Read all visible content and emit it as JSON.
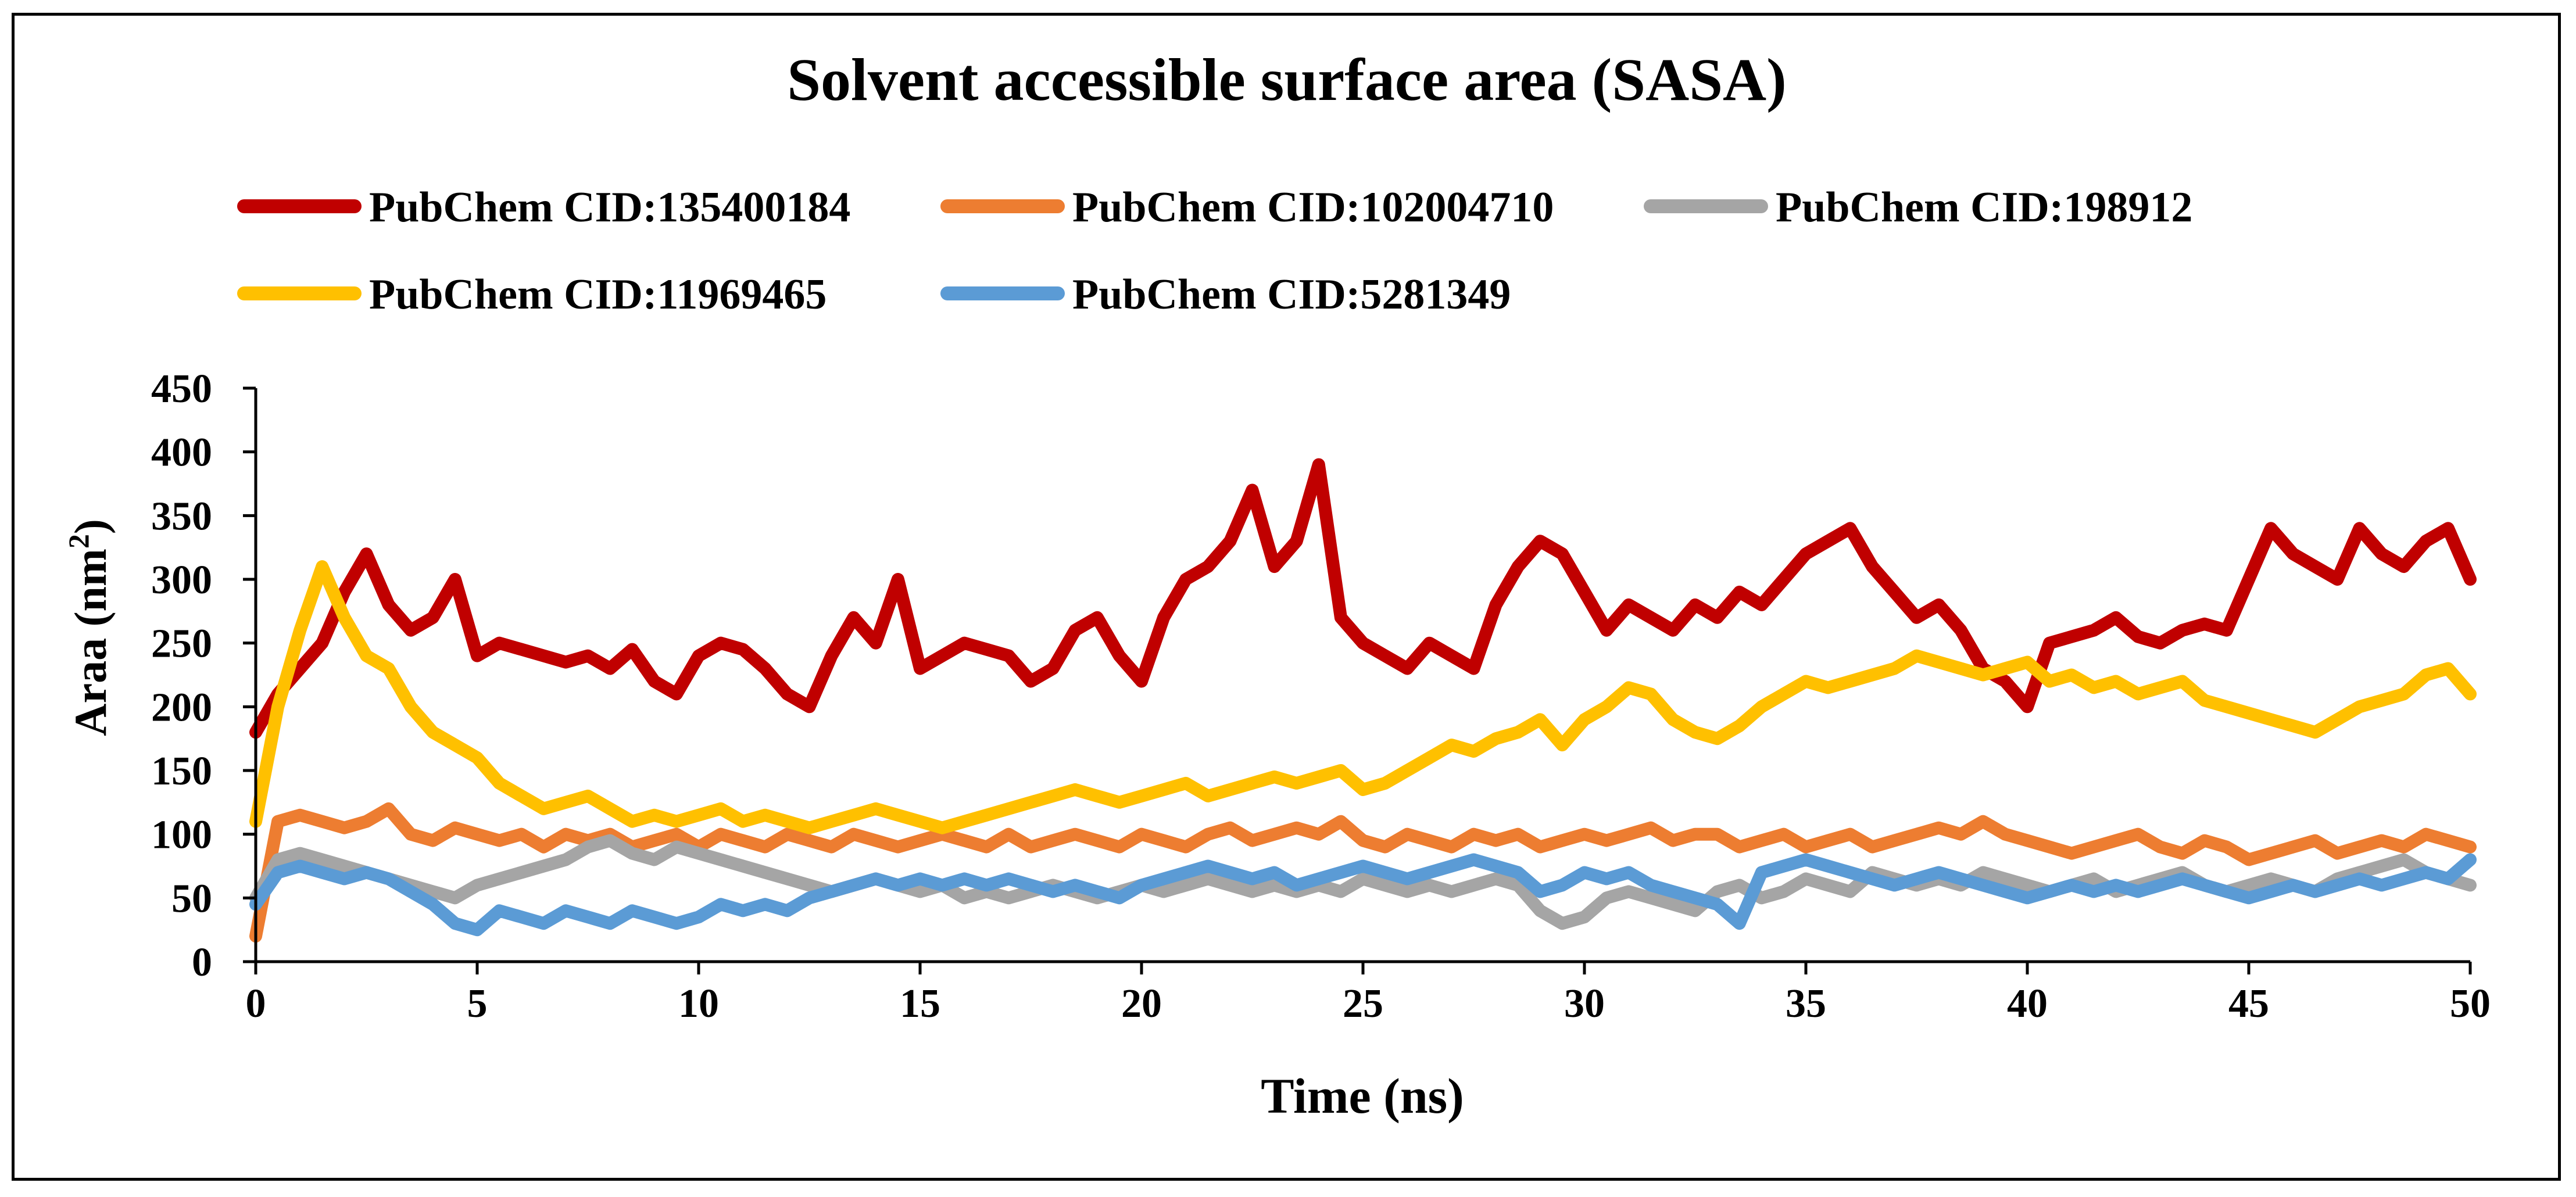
{
  "chart_data": {
    "type": "line",
    "title": "Solvent accessible surface area (SASA)",
    "xlabel": "Time (ns)",
    "ylabel": "Araa (nm",
    "ylabel_sup": "2",
    "ylabel_tail": ")",
    "xlim": [
      0,
      50
    ],
    "ylim": [
      0,
      450
    ],
    "xticks": [
      0,
      5,
      10,
      15,
      20,
      25,
      30,
      35,
      40,
      45,
      50
    ],
    "yticks": [
      0,
      50,
      100,
      150,
      200,
      250,
      300,
      350,
      400,
      450
    ],
    "legend_position": "top",
    "series": [
      {
        "name": "PubChem CID:135400184",
        "color": "#C00000",
        "x": [
          0,
          0.5,
          1,
          1.5,
          2,
          2.5,
          3,
          3.5,
          4,
          4.5,
          5,
          5.5,
          6,
          6.5,
          7,
          7.5,
          8,
          8.5,
          9,
          9.5,
          10,
          10.5,
          11,
          11.5,
          12,
          12.5,
          13,
          13.5,
          14,
          14.5,
          15,
          15.5,
          16,
          16.5,
          17,
          17.5,
          18,
          18.5,
          19,
          19.5,
          20,
          20.5,
          21,
          21.5,
          22,
          22.5,
          23,
          23.5,
          24,
          24.5,
          25,
          25.5,
          26,
          26.5,
          27,
          27.5,
          28,
          28.5,
          29,
          29.5,
          30,
          30.5,
          31,
          31.5,
          32,
          32.5,
          33,
          33.5,
          34,
          34.5,
          35,
          35.5,
          36,
          36.5,
          37,
          37.5,
          38,
          38.5,
          39,
          39.5,
          40,
          40.5,
          41,
          41.5,
          42,
          42.5,
          43,
          43.5,
          44,
          44.5,
          45,
          45.5,
          46,
          46.5,
          47,
          47.5,
          48,
          48.5,
          49,
          49.5,
          50
        ],
        "values": [
          180,
          210,
          230,
          250,
          290,
          320,
          280,
          260,
          270,
          300,
          240,
          250,
          245,
          240,
          235,
          240,
          230,
          245,
          220,
          210,
          240,
          250,
          245,
          230,
          210,
          200,
          240,
          270,
          250,
          300,
          230,
          240,
          250,
          245,
          240,
          220,
          230,
          260,
          270,
          240,
          220,
          270,
          300,
          310,
          330,
          370,
          310,
          330,
          390,
          270,
          250,
          240,
          230,
          250,
          240,
          230,
          280,
          310,
          330,
          320,
          290,
          260,
          280,
          270,
          260,
          280,
          270,
          290,
          280,
          300,
          320,
          330,
          340,
          310,
          290,
          270,
          280,
          260,
          230,
          220,
          200,
          250,
          255,
          260,
          270,
          255,
          250,
          260,
          265,
          260,
          300,
          340,
          320,
          310,
          300,
          340,
          320,
          310,
          330,
          340,
          300
        ]
      },
      {
        "name": "PubChem CID:102004710",
        "color": "#ED7D31",
        "x": [
          0,
          0.5,
          1,
          1.5,
          2,
          2.5,
          3,
          3.5,
          4,
          4.5,
          5,
          5.5,
          6,
          6.5,
          7,
          7.5,
          8,
          8.5,
          9,
          9.5,
          10,
          10.5,
          11,
          11.5,
          12,
          12.5,
          13,
          13.5,
          14,
          14.5,
          15,
          15.5,
          16,
          16.5,
          17,
          17.5,
          18,
          18.5,
          19,
          19.5,
          20,
          20.5,
          21,
          21.5,
          22,
          22.5,
          23,
          23.5,
          24,
          24.5,
          25,
          25.5,
          26,
          26.5,
          27,
          27.5,
          28,
          28.5,
          29,
          29.5,
          30,
          30.5,
          31,
          31.5,
          32,
          32.5,
          33,
          33.5,
          34,
          34.5,
          35,
          35.5,
          36,
          36.5,
          37,
          37.5,
          38,
          38.5,
          39,
          39.5,
          40,
          40.5,
          41,
          41.5,
          42,
          42.5,
          43,
          43.5,
          44,
          44.5,
          45,
          45.5,
          46,
          46.5,
          47,
          47.5,
          48,
          48.5,
          49,
          49.5,
          50
        ],
        "values": [
          20,
          110,
          115,
          110,
          105,
          110,
          120,
          100,
          95,
          105,
          100,
          95,
          100,
          90,
          100,
          95,
          100,
          90,
          95,
          100,
          90,
          100,
          95,
          90,
          100,
          95,
          90,
          100,
          95,
          90,
          95,
          100,
          95,
          90,
          100,
          90,
          95,
          100,
          95,
          90,
          100,
          95,
          90,
          100,
          105,
          95,
          100,
          105,
          100,
          110,
          95,
          90,
          100,
          95,
          90,
          100,
          95,
          100,
          90,
          95,
          100,
          95,
          100,
          105,
          95,
          100,
          100,
          90,
          95,
          100,
          90,
          95,
          100,
          90,
          95,
          100,
          105,
          100,
          110,
          100,
          95,
          90,
          85,
          90,
          95,
          100,
          90,
          85,
          95,
          90,
          80,
          85,
          90,
          95,
          85,
          90,
          95,
          90,
          100,
          95,
          90
        ]
      },
      {
        "name": "PubChem CID:198912",
        "color": "#A5A5A5",
        "x": [
          0,
          0.5,
          1,
          1.5,
          2,
          2.5,
          3,
          3.5,
          4,
          4.5,
          5,
          5.5,
          6,
          6.5,
          7,
          7.5,
          8,
          8.5,
          9,
          9.5,
          10,
          10.5,
          11,
          11.5,
          12,
          12.5,
          13,
          13.5,
          14,
          14.5,
          15,
          15.5,
          16,
          16.5,
          17,
          17.5,
          18,
          18.5,
          19,
          19.5,
          20,
          20.5,
          21,
          21.5,
          22,
          22.5,
          23,
          23.5,
          24,
          24.5,
          25,
          25.5,
          26,
          26.5,
          27,
          27.5,
          28,
          28.5,
          29,
          29.5,
          30,
          30.5,
          31,
          31.5,
          32,
          32.5,
          33,
          33.5,
          34,
          34.5,
          35,
          35.5,
          36,
          36.5,
          37,
          37.5,
          38,
          38.5,
          39,
          39.5,
          40,
          40.5,
          41,
          41.5,
          42,
          42.5,
          43,
          43.5,
          44,
          44.5,
          45,
          45.5,
          46,
          46.5,
          47,
          47.5,
          48,
          48.5,
          49,
          49.5,
          50
        ],
        "values": [
          50,
          80,
          85,
          80,
          75,
          70,
          65,
          60,
          55,
          50,
          60,
          65,
          70,
          75,
          80,
          90,
          95,
          85,
          80,
          90,
          85,
          80,
          75,
          70,
          65,
          60,
          55,
          60,
          65,
          60,
          55,
          60,
          50,
          55,
          50,
          55,
          60,
          55,
          50,
          55,
          60,
          55,
          60,
          65,
          60,
          55,
          60,
          55,
          60,
          55,
          65,
          60,
          55,
          60,
          55,
          60,
          65,
          60,
          40,
          30,
          35,
          50,
          55,
          50,
          45,
          40,
          55,
          60,
          50,
          55,
          65,
          60,
          55,
          70,
          65,
          60,
          65,
          60,
          70,
          65,
          60,
          55,
          60,
          65,
          55,
          60,
          65,
          70,
          60,
          55,
          60,
          65,
          60,
          55,
          65,
          70,
          75,
          80,
          70,
          65,
          60
        ]
      },
      {
        "name": "PubChem CID:11969465",
        "color": "#FFC000",
        "x": [
          0,
          0.5,
          1,
          1.5,
          2,
          2.5,
          3,
          3.5,
          4,
          4.5,
          5,
          5.5,
          6,
          6.5,
          7,
          7.5,
          8,
          8.5,
          9,
          9.5,
          10,
          10.5,
          11,
          11.5,
          12,
          12.5,
          13,
          13.5,
          14,
          14.5,
          15,
          15.5,
          16,
          16.5,
          17,
          17.5,
          18,
          18.5,
          19,
          19.5,
          20,
          20.5,
          21,
          21.5,
          22,
          22.5,
          23,
          23.5,
          24,
          24.5,
          25,
          25.5,
          26,
          26.5,
          27,
          27.5,
          28,
          28.5,
          29,
          29.5,
          30,
          30.5,
          31,
          31.5,
          32,
          32.5,
          33,
          33.5,
          34,
          34.5,
          35,
          35.5,
          36,
          36.5,
          37,
          37.5,
          38,
          38.5,
          39,
          39.5,
          40,
          40.5,
          41,
          41.5,
          42,
          42.5,
          43,
          43.5,
          44,
          44.5,
          45,
          45.5,
          46,
          46.5,
          47,
          47.5,
          48,
          48.5,
          49,
          49.5,
          50
        ],
        "values": [
          110,
          200,
          260,
          310,
          270,
          240,
          230,
          200,
          180,
          170,
          160,
          140,
          130,
          120,
          125,
          130,
          120,
          110,
          115,
          110,
          115,
          120,
          110,
          115,
          110,
          105,
          110,
          115,
          120,
          115,
          110,
          105,
          110,
          115,
          120,
          125,
          130,
          135,
          130,
          125,
          130,
          135,
          140,
          130,
          135,
          140,
          145,
          140,
          145,
          150,
          135,
          140,
          150,
          160,
          170,
          165,
          175,
          180,
          190,
          170,
          190,
          200,
          215,
          210,
          190,
          180,
          175,
          185,
          200,
          210,
          220,
          215,
          220,
          225,
          230,
          240,
          235,
          230,
          225,
          230,
          235,
          220,
          225,
          215,
          220,
          210,
          215,
          220,
          205,
          200,
          195,
          190,
          185,
          180,
          190,
          200,
          205,
          210,
          225,
          230,
          210
        ]
      },
      {
        "name": "PubChem CID:5281349",
        "color": "#5B9BD5",
        "x": [
          0,
          0.5,
          1,
          1.5,
          2,
          2.5,
          3,
          3.5,
          4,
          4.5,
          5,
          5.5,
          6,
          6.5,
          7,
          7.5,
          8,
          8.5,
          9,
          9.5,
          10,
          10.5,
          11,
          11.5,
          12,
          12.5,
          13,
          13.5,
          14,
          14.5,
          15,
          15.5,
          16,
          16.5,
          17,
          17.5,
          18,
          18.5,
          19,
          19.5,
          20,
          20.5,
          21,
          21.5,
          22,
          22.5,
          23,
          23.5,
          24,
          24.5,
          25,
          25.5,
          26,
          26.5,
          27,
          27.5,
          28,
          28.5,
          29,
          29.5,
          30,
          30.5,
          31,
          31.5,
          32,
          32.5,
          33,
          33.5,
          34,
          34.5,
          35,
          35.5,
          36,
          36.5,
          37,
          37.5,
          38,
          38.5,
          39,
          39.5,
          40,
          40.5,
          41,
          41.5,
          42,
          42.5,
          43,
          43.5,
          44,
          44.5,
          45,
          45.5,
          46,
          46.5,
          47,
          47.5,
          48,
          48.5,
          49,
          49.5,
          50
        ],
        "values": [
          45,
          70,
          75,
          70,
          65,
          70,
          65,
          55,
          45,
          30,
          25,
          40,
          35,
          30,
          40,
          35,
          30,
          40,
          35,
          30,
          35,
          45,
          40,
          45,
          40,
          50,
          55,
          60,
          65,
          60,
          65,
          60,
          65,
          60,
          65,
          60,
          55,
          60,
          55,
          50,
          60,
          65,
          70,
          75,
          70,
          65,
          70,
          60,
          65,
          70,
          75,
          70,
          65,
          70,
          75,
          80,
          75,
          70,
          55,
          60,
          70,
          65,
          70,
          60,
          55,
          50,
          45,
          30,
          70,
          75,
          80,
          75,
          70,
          65,
          60,
          65,
          70,
          65,
          60,
          55,
          50,
          55,
          60,
          55,
          60,
          55,
          60,
          65,
          60,
          55,
          50,
          55,
          60,
          55,
          60,
          65,
          60,
          65,
          70,
          65,
          80
        ]
      }
    ]
  }
}
